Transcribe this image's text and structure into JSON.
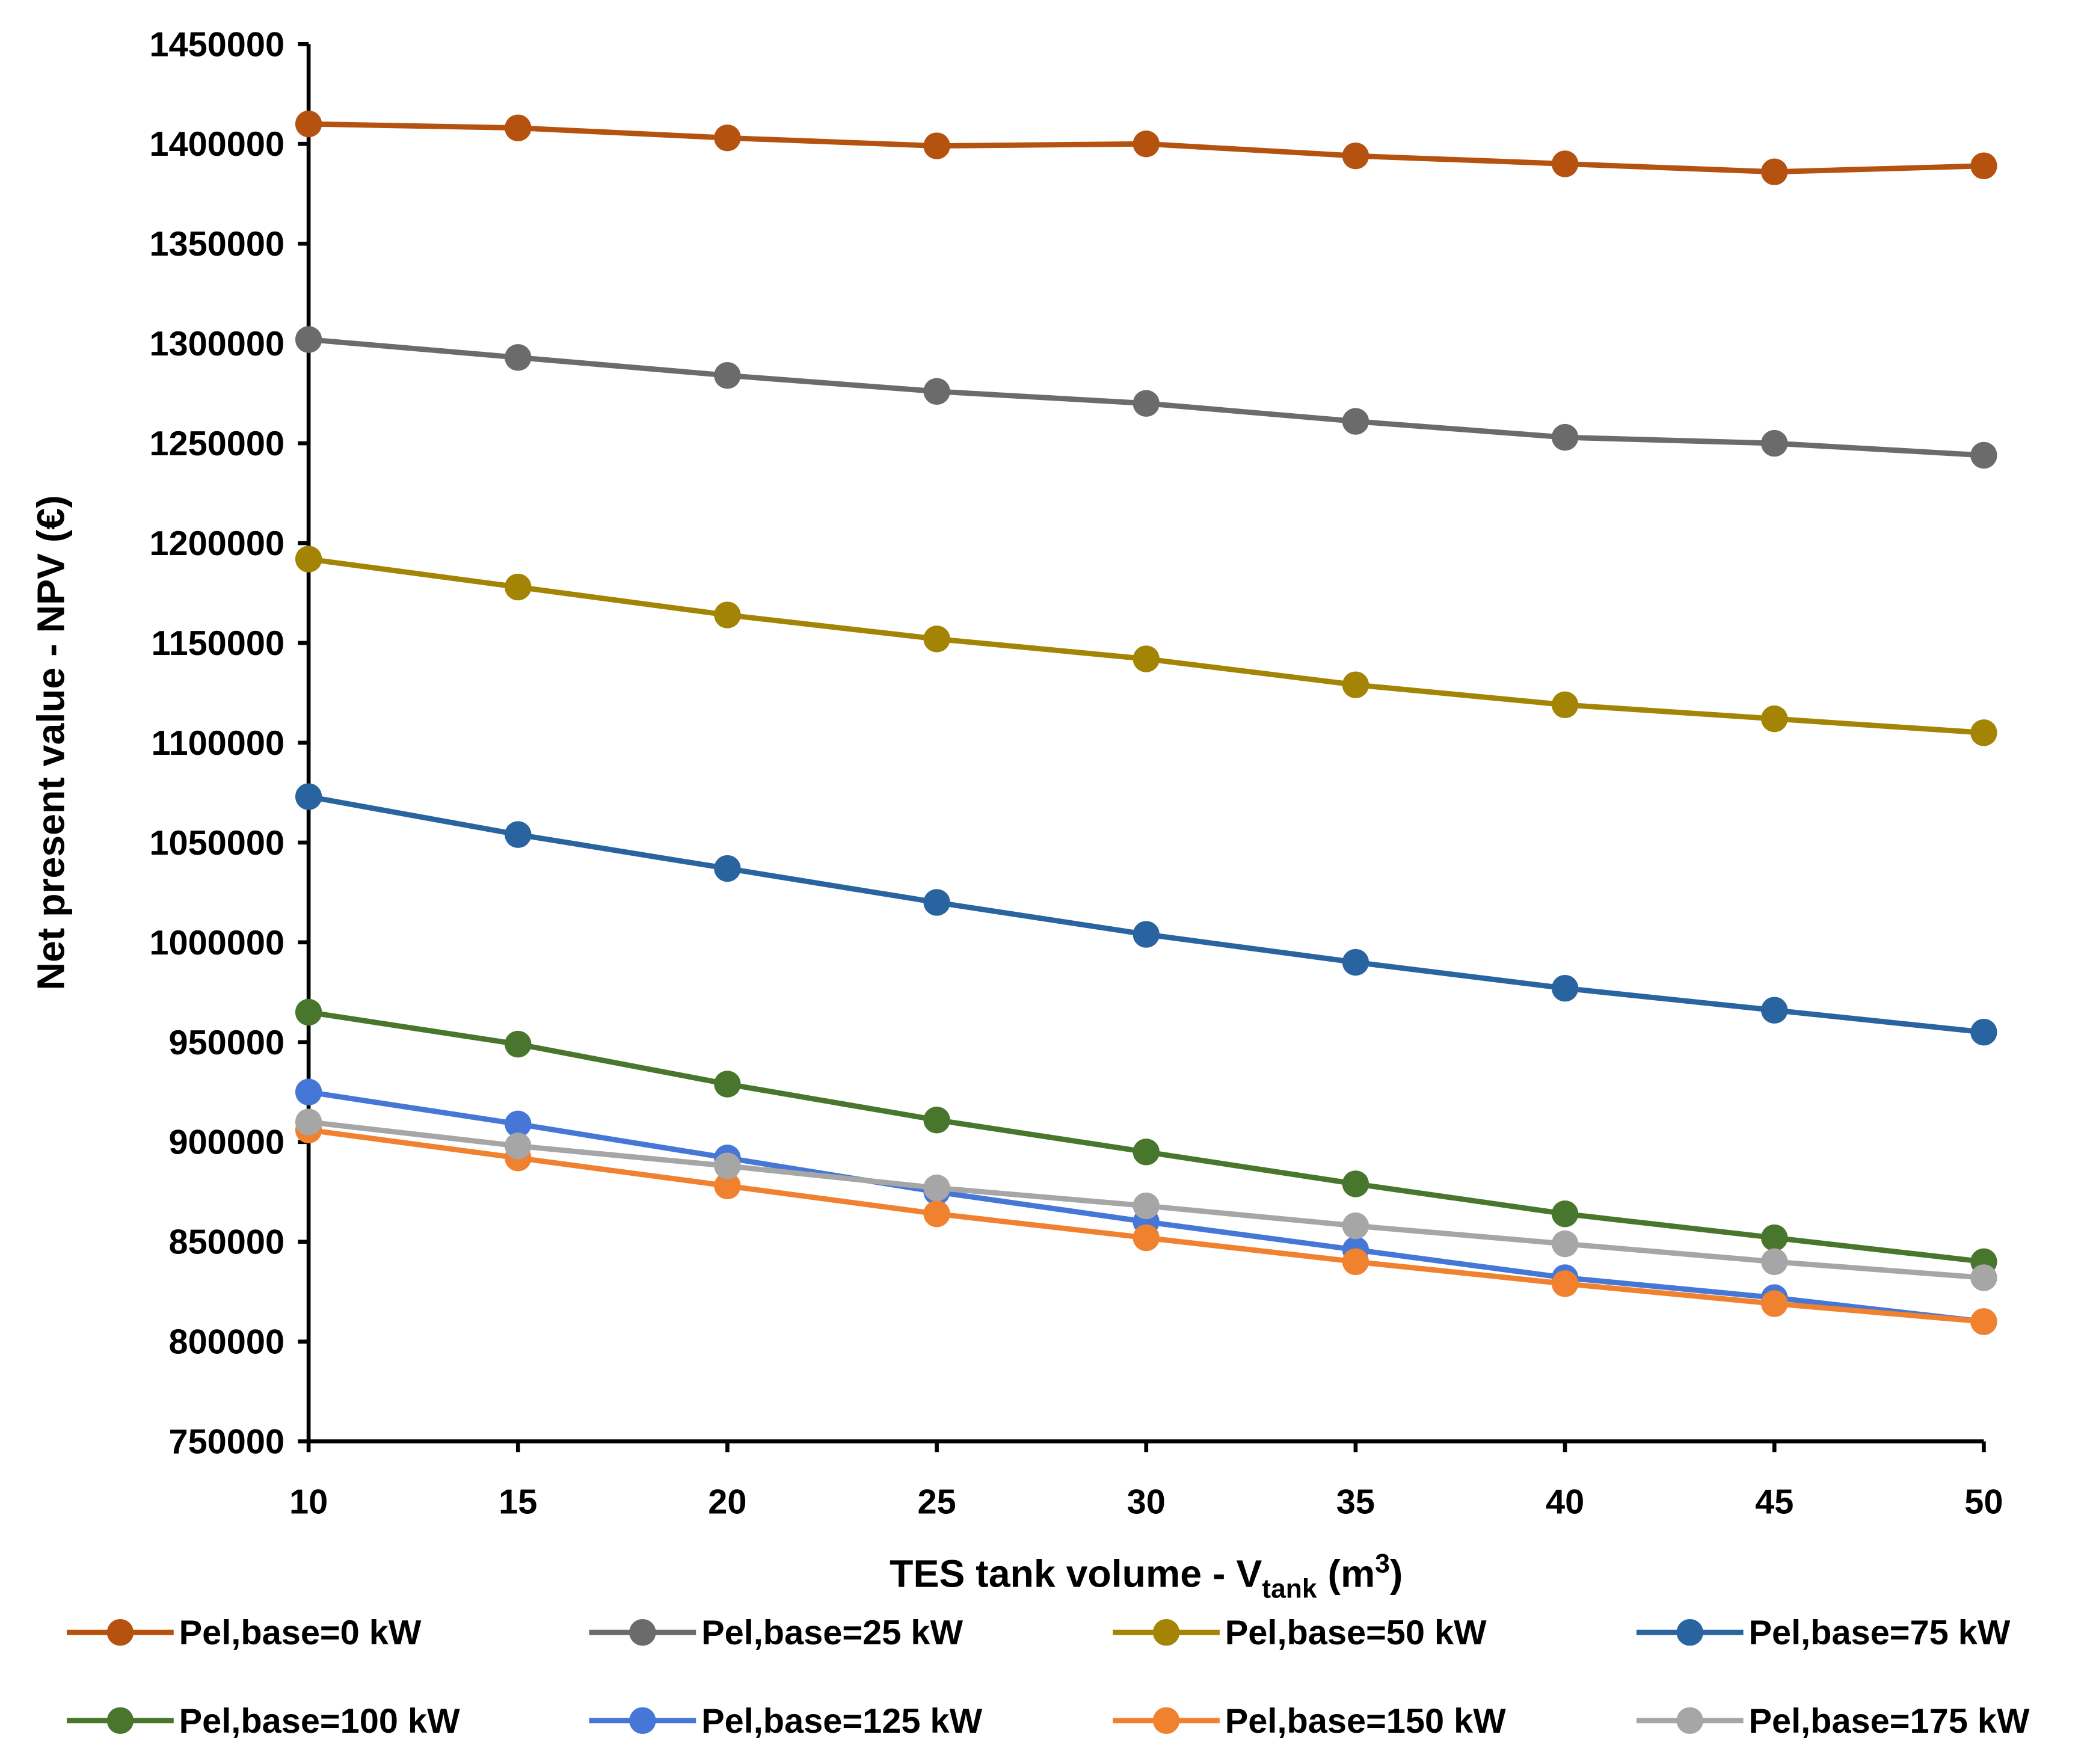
{
  "chart_data": {
    "type": "line",
    "x_label": [
      "TES tank volume - V",
      "tank",
      " (m",
      "3",
      ")"
    ],
    "y_label": "Net present value - NPV (€)",
    "x": [
      10,
      15,
      20,
      25,
      30,
      35,
      40,
      45,
      50
    ],
    "xlim": [
      10,
      50
    ],
    "xticks": [
      10,
      15,
      20,
      25,
      30,
      35,
      40,
      45,
      50
    ],
    "ylim": [
      750000,
      1450000
    ],
    "yticks": [
      750000,
      800000,
      850000,
      900000,
      950000,
      1000000,
      1050000,
      1100000,
      1150000,
      1200000,
      1250000,
      1300000,
      1350000,
      1400000,
      1450000
    ],
    "grid": false,
    "legend": "bottom",
    "series": [
      {
        "name": "Pel,base=0 kW",
        "color": "#b5520f",
        "values": [
          1410000,
          1408000,
          1403000,
          1399000,
          1400000,
          1394000,
          1390000,
          1386000,
          1389000
        ]
      },
      {
        "name": "Pel,base=25 kW",
        "color": "#6b6b6b",
        "values": [
          1302000,
          1293000,
          1284000,
          1276000,
          1270000,
          1261000,
          1253000,
          1250000,
          1244000
        ]
      },
      {
        "name": "Pel,base=50 kW",
        "color": "#a38405",
        "values": [
          1192000,
          1178000,
          1164000,
          1152000,
          1142000,
          1129000,
          1119000,
          1112000,
          1105000
        ]
      },
      {
        "name": "Pel,base=75 kW",
        "color": "#2a64a0",
        "values": [
          1073000,
          1054000,
          1037000,
          1020000,
          1004000,
          990000,
          977000,
          966000,
          955000
        ]
      },
      {
        "name": "Pel,base=100 kW",
        "color": "#48762c",
        "values": [
          965000,
          949000,
          929000,
          911000,
          895000,
          879000,
          864000,
          852000,
          840000
        ]
      },
      {
        "name": "Pel,base=125 kW",
        "color": "#4677d6",
        "values": [
          925000,
          909000,
          892000,
          875000,
          860000,
          846000,
          832000,
          822000,
          810000
        ]
      },
      {
        "name": "Pel,base=150 kW",
        "color": "#f0812f",
        "values": [
          906000,
          892000,
          878000,
          864000,
          852000,
          840000,
          829000,
          819000,
          810000
        ]
      },
      {
        "name": "Pel,base=175 kW",
        "color": "#a6a6a6",
        "values": [
          910000,
          898000,
          888000,
          877000,
          868000,
          858000,
          849000,
          840000,
          832000
        ]
      }
    ]
  }
}
